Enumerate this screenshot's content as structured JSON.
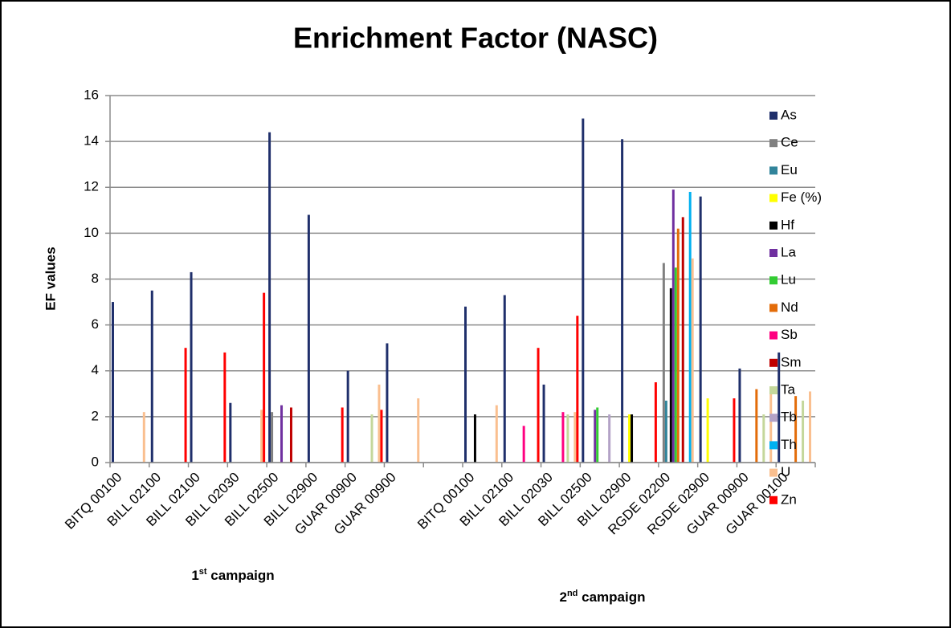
{
  "chart_data": {
    "type": "bar",
    "title": "Enrichment Factor (NASC)",
    "y_label": "EF values",
    "categories": [
      "BITQ 00100",
      "BILL 02100",
      "BILL 02100",
      "BILL 02030",
      "BILL 02500",
      "BILL 02900",
      "GUAR 00900",
      "GUAR 00900",
      null,
      "BITQ 00100",
      "BILL 02100",
      "BILL 02030",
      "BILL 02500",
      "BILL 02900",
      "RGDE 02200",
      "RGDE 02900",
      "GUAR 00900",
      "GUAR 00100"
    ],
    "group_labels": [
      [
        "1",
        "st",
        " campaign"
      ],
      [
        "2",
        "nd",
        " campaign"
      ]
    ],
    "ylim": [
      0,
      16
    ],
    "yticks": [
      0,
      2,
      4,
      6,
      8,
      10,
      12,
      14,
      16
    ],
    "grid": true,
    "legend": "right",
    "series": [
      {
        "name": "As",
        "color": "#1f2f6b",
        "values": [
          7.0,
          7.5,
          8.3,
          2.6,
          14.4,
          10.8,
          4.0,
          5.2,
          null,
          6.8,
          7.3,
          3.4,
          15.0,
          14.1,
          null,
          11.6,
          4.1,
          4.8
        ]
      },
      {
        "name": "Ce",
        "color": "#808080",
        "values": [
          null,
          null,
          null,
          null,
          2.2,
          null,
          null,
          null,
          null,
          null,
          null,
          null,
          null,
          null,
          8.7,
          null,
          null,
          null
        ]
      },
      {
        "name": "Eu",
        "color": "#31849b",
        "values": [
          null,
          null,
          null,
          null,
          null,
          null,
          null,
          null,
          null,
          null,
          null,
          null,
          null,
          null,
          2.7,
          null,
          null,
          null
        ]
      },
      {
        "name": "Fe (%)",
        "color": "#ffff00",
        "values": [
          null,
          null,
          null,
          null,
          null,
          null,
          null,
          null,
          null,
          null,
          null,
          null,
          null,
          2.1,
          null,
          2.8,
          null,
          null
        ]
      },
      {
        "name": "Hf",
        "color": "#000000",
        "values": [
          null,
          null,
          null,
          null,
          null,
          null,
          null,
          null,
          null,
          2.1,
          null,
          null,
          null,
          2.1,
          7.6,
          null,
          null,
          null
        ]
      },
      {
        "name": "La",
        "color": "#7030a0",
        "values": [
          null,
          null,
          null,
          null,
          2.5,
          null,
          null,
          null,
          null,
          null,
          null,
          null,
          2.3,
          null,
          11.9,
          null,
          null,
          null
        ]
      },
      {
        "name": "Lu",
        "color": "#33cc33",
        "values": [
          null,
          null,
          null,
          null,
          null,
          null,
          null,
          null,
          null,
          null,
          null,
          null,
          2.4,
          null,
          8.5,
          null,
          null,
          null
        ]
      },
      {
        "name": "Nd",
        "color": "#e36c09",
        "values": [
          null,
          null,
          null,
          null,
          null,
          null,
          null,
          null,
          null,
          null,
          null,
          null,
          null,
          null,
          10.2,
          null,
          3.2,
          2.9
        ]
      },
      {
        "name": "Sb",
        "color": "#ff0080",
        "values": [
          null,
          null,
          null,
          null,
          null,
          null,
          null,
          null,
          null,
          null,
          1.6,
          2.2,
          null,
          null,
          null,
          null,
          null,
          null
        ]
      },
      {
        "name": "Sm",
        "color": "#c00000",
        "values": [
          null,
          null,
          null,
          null,
          2.4,
          null,
          null,
          null,
          null,
          null,
          null,
          null,
          null,
          null,
          10.7,
          null,
          null,
          null
        ]
      },
      {
        "name": "Ta",
        "color": "#c4d79b",
        "values": [
          null,
          null,
          null,
          null,
          null,
          null,
          2.1,
          null,
          null,
          null,
          null,
          2.1,
          null,
          null,
          null,
          null,
          2.1,
          2.7
        ]
      },
      {
        "name": "Tb",
        "color": "#b3a2c7",
        "values": [
          null,
          null,
          null,
          null,
          null,
          null,
          null,
          null,
          null,
          null,
          null,
          null,
          2.1,
          null,
          null,
          null,
          null,
          null
        ]
      },
      {
        "name": "Th",
        "color": "#00b0f0",
        "values": [
          null,
          null,
          null,
          null,
          null,
          null,
          null,
          null,
          null,
          null,
          null,
          null,
          null,
          null,
          11.8,
          null,
          null,
          null
        ]
      },
      {
        "name": "U",
        "color": "#fabf8f",
        "values": [
          2.2,
          null,
          null,
          2.3,
          null,
          null,
          3.4,
          2.8,
          null,
          2.5,
          null,
          2.2,
          null,
          null,
          8.9,
          null,
          3.2,
          3.1
        ]
      },
      {
        "name": "Zn",
        "color": "#ff0000",
        "values": [
          null,
          5.0,
          4.8,
          7.4,
          null,
          2.4,
          2.3,
          null,
          null,
          null,
          5.0,
          6.4,
          null,
          3.5,
          null,
          2.8,
          null,
          null
        ]
      }
    ]
  }
}
